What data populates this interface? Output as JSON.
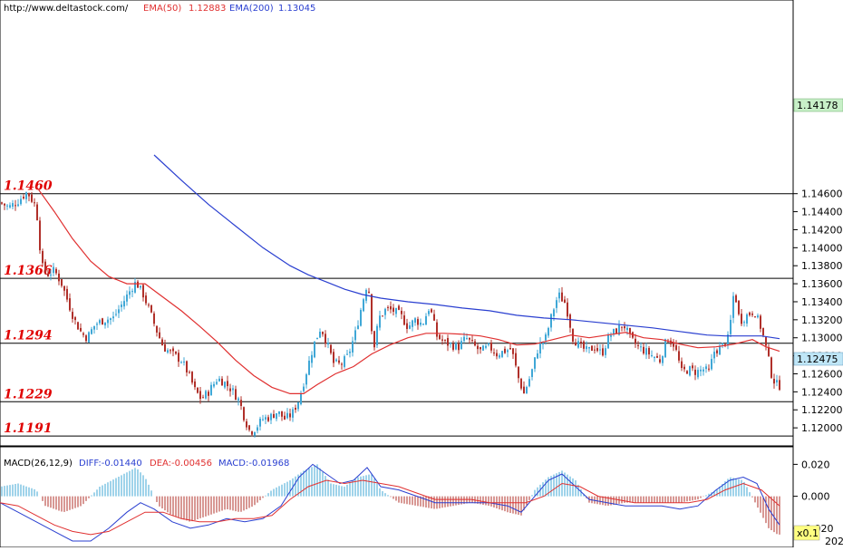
{
  "header": {
    "site": "http://www.deltastock.com/",
    "ema50_label": "EMA(50)",
    "ema50_value": "1.12883",
    "ema200_label": "EMA(200)",
    "ema200_value": "1.13045"
  },
  "macd_header": {
    "name": "MACD(26,12,9)",
    "diff": "DIFF:-0.01440",
    "dea": "DEA:-0.00456",
    "macd": "MACD:-0.01968"
  },
  "colors": {
    "bull": "#3fa7d6",
    "bear": "#b0302a",
    "ema50": "#e03030",
    "ema200": "#2a3fd0",
    "level_line": "#000000",
    "level_text": "#e00000",
    "price_box_top": "#c8f0c8",
    "price_box_last": "#bfe6f7",
    "scale_badge": "#ffff80"
  },
  "markers": {
    "top_price": "1.14178",
    "last_price": "1.12475",
    "scale_badge": "x0.1",
    "corner": "202"
  },
  "chart_data": [
    {
      "type": "candlestick",
      "title": "",
      "ylim": [
        1.118,
        1.1675
      ],
      "y_ticks": [
        "1.14600",
        "1.14400",
        "1.14200",
        "1.14000",
        "1.13800",
        "1.13600",
        "1.13400",
        "1.13200",
        "1.13000",
        "1.12800",
        "1.12600",
        "1.12400",
        "1.12200",
        "1.12000"
      ],
      "levels": [
        {
          "label": "1.1460",
          "value": 1.146
        },
        {
          "label": "1.1366",
          "value": 1.1366
        },
        {
          "label": "1.1294",
          "value": 1.1294
        },
        {
          "label": "1.1229",
          "value": 1.1229
        },
        {
          "label": "1.1191",
          "value": 1.1191
        }
      ],
      "close_path": [
        [
          0,
          1.145
        ],
        [
          10,
          1.1445
        ],
        [
          20,
          1.1452
        ],
        [
          30,
          1.1462
        ],
        [
          40,
          1.1445
        ],
        [
          46,
          1.138
        ],
        [
          52,
          1.137
        ],
        [
          60,
          1.1375
        ],
        [
          68,
          1.136
        ],
        [
          75,
          1.134
        ],
        [
          82,
          1.132
        ],
        [
          90,
          1.1305
        ],
        [
          96,
          1.13
        ],
        [
          105,
          1.1315
        ],
        [
          115,
          1.132
        ],
        [
          125,
          1.1322
        ],
        [
          135,
          1.1338
        ],
        [
          145,
          1.1355
        ],
        [
          150,
          1.1362
        ],
        [
          158,
          1.1348
        ],
        [
          165,
          1.133
        ],
        [
          172,
          1.131
        ],
        [
          180,
          1.129
        ],
        [
          190,
          1.1282
        ],
        [
          200,
          1.1275
        ],
        [
          208,
          1.126
        ],
        [
          215,
          1.1242
        ],
        [
          222,
          1.1232
        ],
        [
          230,
          1.124
        ],
        [
          240,
          1.1255
        ],
        [
          248,
          1.125
        ],
        [
          256,
          1.1242
        ],
        [
          264,
          1.123
        ],
        [
          270,
          1.121
        ],
        [
          276,
          1.1195
        ],
        [
          282,
          1.12
        ],
        [
          290,
          1.121
        ],
        [
          298,
          1.1212
        ],
        [
          306,
          1.1218
        ],
        [
          314,
          1.121
        ],
        [
          322,
          1.1215
        ],
        [
          330,
          1.1232
        ],
        [
          338,
          1.1262
        ],
        [
          346,
          1.1292
        ],
        [
          354,
          1.1312
        ],
        [
          362,
          1.129
        ],
        [
          368,
          1.1272
        ],
        [
          376,
          1.127
        ],
        [
          384,
          1.128
        ],
        [
          392,
          1.1305
        ],
        [
          400,
          1.134
        ],
        [
          406,
          1.1365
        ],
        [
          412,
          1.1285
        ],
        [
          418,
          1.1322
        ],
        [
          426,
          1.1332
        ],
        [
          434,
          1.133
        ],
        [
          442,
          1.1325
        ],
        [
          450,
          1.1312
        ],
        [
          458,
          1.132
        ],
        [
          466,
          1.1315
        ],
        [
          474,
          1.1335
        ],
        [
          482,
          1.1302
        ],
        [
          490,
          1.1295
        ],
        [
          498,
          1.1292
        ],
        [
          506,
          1.129
        ],
        [
          514,
          1.13
        ],
        [
          522,
          1.1292
        ],
        [
          530,
          1.1285
        ],
        [
          540,
          1.129
        ],
        [
          548,
          1.1282
        ],
        [
          556,
          1.1285
        ],
        [
          564,
          1.1288
        ],
        [
          572,
          1.1255
        ],
        [
          578,
          1.1238
        ],
        [
          586,
          1.126
        ],
        [
          594,
          1.129
        ],
        [
          602,
          1.13
        ],
        [
          610,
          1.133
        ],
        [
          616,
          1.1348
        ],
        [
          624,
          1.1338
        ],
        [
          632,
          1.13
        ],
        [
          640,
          1.129
        ],
        [
          648,
          1.1285
        ],
        [
          656,
          1.129
        ],
        [
          664,
          1.1282
        ],
        [
          672,
          1.1302
        ],
        [
          680,
          1.1308
        ],
        [
          688,
          1.1315
        ],
        [
          696,
          1.1298
        ],
        [
          704,
          1.129
        ],
        [
          712,
          1.1285
        ],
        [
          720,
          1.128
        ],
        [
          728,
          1.1275
        ],
        [
          736,
          1.13
        ],
        [
          744,
          1.1292
        ],
        [
          752,
          1.1262
        ],
        [
          760,
          1.1265
        ],
        [
          768,
          1.1262
        ],
        [
          776,
          1.1265
        ],
        [
          782,
          1.1262
        ],
        [
          788,
          1.1285
        ],
        [
          796,
          1.129
        ],
        [
          804,
          1.13
        ],
        [
          810,
          1.1355
        ],
        [
          816,
          1.1318
        ],
        [
          824,
          1.1325
        ],
        [
          832,
          1.133
        ],
        [
          840,
          1.131
        ],
        [
          846,
          1.1285
        ],
        [
          852,
          1.1255
        ],
        [
          858,
          1.1247
        ]
      ],
      "ema50": [
        [
          40,
          1.1468
        ],
        [
          60,
          1.144
        ],
        [
          80,
          1.141
        ],
        [
          100,
          1.1385
        ],
        [
          120,
          1.1368
        ],
        [
          140,
          1.136
        ],
        [
          160,
          1.136
        ],
        [
          180,
          1.1345
        ],
        [
          200,
          1.133
        ],
        [
          220,
          1.1313
        ],
        [
          240,
          1.1295
        ],
        [
          260,
          1.1275
        ],
        [
          280,
          1.1258
        ],
        [
          300,
          1.1245
        ],
        [
          320,
          1.1238
        ],
        [
          335,
          1.1238
        ],
        [
          350,
          1.1248
        ],
        [
          370,
          1.126
        ],
        [
          390,
          1.1268
        ],
        [
          410,
          1.1282
        ],
        [
          430,
          1.1292
        ],
        [
          450,
          1.13
        ],
        [
          470,
          1.1305
        ],
        [
          490,
          1.1305
        ],
        [
          510,
          1.1304
        ],
        [
          530,
          1.1302
        ],
        [
          550,
          1.1298
        ],
        [
          570,
          1.1292
        ],
        [
          590,
          1.1293
        ],
        [
          610,
          1.1298
        ],
        [
          630,
          1.1303
        ],
        [
          650,
          1.13
        ],
        [
          670,
          1.1303
        ],
        [
          690,
          1.1306
        ],
        [
          710,
          1.13
        ],
        [
          730,
          1.1298
        ],
        [
          750,
          1.1293
        ],
        [
          770,
          1.1289
        ],
        [
          790,
          1.129
        ],
        [
          810,
          1.1293
        ],
        [
          830,
          1.1298
        ],
        [
          845,
          1.129
        ],
        [
          860,
          1.1285
        ]
      ],
      "ema200": [
        [
          170,
          1.1503
        ],
        [
          200,
          1.1475
        ],
        [
          230,
          1.1448
        ],
        [
          260,
          1.1424
        ],
        [
          290,
          1.14
        ],
        [
          320,
          1.138
        ],
        [
          340,
          1.137
        ],
        [
          360,
          1.1362
        ],
        [
          380,
          1.1354
        ],
        [
          400,
          1.1348
        ],
        [
          420,
          1.1344
        ],
        [
          450,
          1.134
        ],
        [
          480,
          1.1337
        ],
        [
          510,
          1.1333
        ],
        [
          540,
          1.133
        ],
        [
          570,
          1.1325
        ],
        [
          600,
          1.1322
        ],
        [
          630,
          1.132
        ],
        [
          660,
          1.1317
        ],
        [
          690,
          1.1314
        ],
        [
          720,
          1.1311
        ],
        [
          750,
          1.1307
        ],
        [
          780,
          1.1303
        ],
        [
          800,
          1.1302
        ],
        [
          820,
          1.1302
        ],
        [
          840,
          1.1302
        ],
        [
          860,
          1.1299
        ]
      ]
    },
    {
      "type": "bar",
      "title": "MACD(26,12,9)",
      "ylim": [
        -0.032,
        0.031
      ],
      "y_ticks": [
        "0.020",
        "0.000",
        "-0.020"
      ],
      "hist_path": [
        [
          0,
          0.006
        ],
        [
          20,
          0.008
        ],
        [
          40,
          0.004
        ],
        [
          50,
          -0.006
        ],
        [
          70,
          -0.01
        ],
        [
          90,
          -0.006
        ],
        [
          110,
          0.006
        ],
        [
          130,
          0.012
        ],
        [
          150,
          0.018
        ],
        [
          160,
          0.012
        ],
        [
          175,
          -0.006
        ],
        [
          190,
          -0.012
        ],
        [
          210,
          -0.016
        ],
        [
          230,
          -0.012
        ],
        [
          250,
          -0.008
        ],
        [
          265,
          -0.01
        ],
        [
          280,
          -0.006
        ],
        [
          300,
          0.004
        ],
        [
          320,
          0.01
        ],
        [
          335,
          0.016
        ],
        [
          350,
          0.02
        ],
        [
          365,
          0.008
        ],
        [
          380,
          0.006
        ],
        [
          395,
          0.012
        ],
        [
          410,
          0.014
        ],
        [
          420,
          0.004
        ],
        [
          440,
          -0.004
        ],
        [
          460,
          -0.006
        ],
        [
          480,
          -0.008
        ],
        [
          500,
          -0.006
        ],
        [
          520,
          -0.004
        ],
        [
          540,
          -0.006
        ],
        [
          560,
          -0.01
        ],
        [
          575,
          -0.012
        ],
        [
          590,
          0.004
        ],
        [
          605,
          0.012
        ],
        [
          620,
          0.016
        ],
        [
          635,
          0.01
        ],
        [
          650,
          -0.004
        ],
        [
          670,
          -0.006
        ],
        [
          690,
          -0.004
        ],
        [
          710,
          -0.004
        ],
        [
          730,
          -0.004
        ],
        [
          750,
          -0.004
        ],
        [
          770,
          -0.002
        ],
        [
          790,
          0.004
        ],
        [
          805,
          0.012
        ],
        [
          820,
          0.01
        ],
        [
          835,
          -0.006
        ],
        [
          848,
          -0.02
        ],
        [
          858,
          -0.024
        ]
      ],
      "diff_path": [
        [
          0,
          -0.004
        ],
        [
          20,
          -0.01
        ],
        [
          40,
          -0.016
        ],
        [
          60,
          -0.022
        ],
        [
          80,
          -0.028
        ],
        [
          100,
          -0.028
        ],
        [
          120,
          -0.02
        ],
        [
          140,
          -0.01
        ],
        [
          155,
          -0.004
        ],
        [
          170,
          -0.008
        ],
        [
          190,
          -0.016
        ],
        [
          210,
          -0.02
        ],
        [
          230,
          -0.018
        ],
        [
          250,
          -0.014
        ],
        [
          270,
          -0.016
        ],
        [
          290,
          -0.014
        ],
        [
          310,
          -0.006
        ],
        [
          330,
          0.012
        ],
        [
          345,
          0.02
        ],
        [
          360,
          0.014
        ],
        [
          375,
          0.008
        ],
        [
          390,
          0.01
        ],
        [
          405,
          0.018
        ],
        [
          420,
          0.006
        ],
        [
          440,
          0.004
        ],
        [
          460,
          0.0
        ],
        [
          480,
          -0.004
        ],
        [
          500,
          -0.004
        ],
        [
          520,
          -0.004
        ],
        [
          540,
          -0.004
        ],
        [
          560,
          -0.006
        ],
        [
          575,
          -0.01
        ],
        [
          590,
          0.0
        ],
        [
          605,
          0.01
        ],
        [
          620,
          0.014
        ],
        [
          635,
          0.006
        ],
        [
          650,
          -0.002
        ],
        [
          670,
          -0.004
        ],
        [
          690,
          -0.006
        ],
        [
          710,
          -0.006
        ],
        [
          730,
          -0.006
        ],
        [
          750,
          -0.008
        ],
        [
          770,
          -0.006
        ],
        [
          790,
          0.004
        ],
        [
          805,
          0.01
        ],
        [
          820,
          0.012
        ],
        [
          835,
          0.008
        ],
        [
          848,
          -0.008
        ],
        [
          860,
          -0.018
        ]
      ],
      "dea_path": [
        [
          0,
          -0.004
        ],
        [
          20,
          -0.006
        ],
        [
          40,
          -0.012
        ],
        [
          60,
          -0.018
        ],
        [
          80,
          -0.022
        ],
        [
          100,
          -0.024
        ],
        [
          120,
          -0.022
        ],
        [
          140,
          -0.016
        ],
        [
          160,
          -0.01
        ],
        [
          180,
          -0.01
        ],
        [
          200,
          -0.014
        ],
        [
          220,
          -0.016
        ],
        [
          240,
          -0.016
        ],
        [
          260,
          -0.014
        ],
        [
          280,
          -0.014
        ],
        [
          300,
          -0.012
        ],
        [
          320,
          -0.002
        ],
        [
          340,
          0.006
        ],
        [
          360,
          0.01
        ],
        [
          380,
          0.008
        ],
        [
          400,
          0.01
        ],
        [
          420,
          0.008
        ],
        [
          440,
          0.006
        ],
        [
          460,
          0.002
        ],
        [
          480,
          -0.002
        ],
        [
          500,
          -0.002
        ],
        [
          520,
          -0.002
        ],
        [
          540,
          -0.004
        ],
        [
          560,
          -0.004
        ],
        [
          580,
          -0.004
        ],
        [
          600,
          0.0
        ],
        [
          620,
          0.008
        ],
        [
          640,
          0.006
        ],
        [
          660,
          0.0
        ],
        [
          680,
          -0.002
        ],
        [
          700,
          -0.004
        ],
        [
          720,
          -0.004
        ],
        [
          740,
          -0.004
        ],
        [
          760,
          -0.004
        ],
        [
          780,
          -0.002
        ],
        [
          800,
          0.004
        ],
        [
          820,
          0.008
        ],
        [
          840,
          0.004
        ],
        [
          860,
          -0.006
        ]
      ]
    }
  ]
}
